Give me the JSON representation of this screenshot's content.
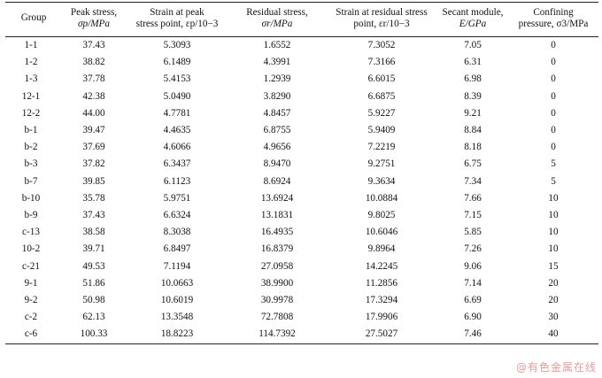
{
  "table": {
    "headers": [
      {
        "line1": "Group",
        "line2": ""
      },
      {
        "line1": "Peak stress,",
        "line2": "σp/MPa"
      },
      {
        "line1": "Strain at peak",
        "line2": "stress point, εp/10−3"
      },
      {
        "line1": "Residual stress,",
        "line2": "σr/MPa"
      },
      {
        "line1": "Strain at residual stress",
        "line2": "point, εr/10−3"
      },
      {
        "line1": "Secant module,",
        "line2": "E/GPa"
      },
      {
        "line1": "Confining",
        "line2": "pressure, σ3/MPa"
      }
    ],
    "rows": [
      [
        "1-1",
        "37.43",
        "5.3093",
        "1.6552",
        "7.3052",
        "7.05",
        "0"
      ],
      [
        "1-2",
        "38.82",
        "6.1489",
        "4.3991",
        "7.3166",
        "6.31",
        "0"
      ],
      [
        "1-3",
        "37.78",
        "5.4153",
        "1.2939",
        "6.6015",
        "6.98",
        "0"
      ],
      [
        "12-1",
        "42.38",
        "5.0490",
        "3.8290",
        "6.6875",
        "8.39",
        "0"
      ],
      [
        "12-2",
        "44.00",
        "4.7781",
        "4.8457",
        "5.9227",
        "9.21",
        "0"
      ],
      [
        "b-1",
        "39.47",
        "4.4635",
        "6.8755",
        "5.9409",
        "8.84",
        "0"
      ],
      [
        "b-2",
        "37.69",
        "4.6066",
        "4.9656",
        "7.2219",
        "8.18",
        "0"
      ],
      [
        "b-3",
        "37.82",
        "6.3437",
        "8.9470",
        "9.2751",
        "6.75",
        "5"
      ],
      [
        "b-7",
        "39.85",
        "6.1123",
        "8.6924",
        "9.3634",
        "7.34",
        "5"
      ],
      [
        "b-10",
        "35.78",
        "5.9751",
        "13.6924",
        "10.0884",
        "7.66",
        "10"
      ],
      [
        "b-9",
        "37.43",
        "6.6324",
        "13.1831",
        "9.8025",
        "7.15",
        "10"
      ],
      [
        "c-13",
        "38.58",
        "8.3038",
        "16.4935",
        "10.6046",
        "5.85",
        "10"
      ],
      [
        "10-2",
        "39.71",
        "6.8497",
        "16.8379",
        "9.8964",
        "7.26",
        "10"
      ],
      [
        "c-21",
        "49.53",
        "7.1194",
        "27.0958",
        "14.2245",
        "9.06",
        "15"
      ],
      [
        "9-1",
        "51.86",
        "10.0663",
        "38.9900",
        "11.2856",
        "7.14",
        "20"
      ],
      [
        "9-2",
        "50.98",
        "10.6019",
        "30.9978",
        "17.3294",
        "6.69",
        "20"
      ],
      [
        "c-2",
        "62.13",
        "13.3548",
        "72.7808",
        "17.9906",
        "6.90",
        "30"
      ],
      [
        "c-6",
        "100.33",
        "18.8223",
        "114.7392",
        "27.5027",
        "7.46",
        "40"
      ]
    ]
  },
  "watermark": {
    "text": "@有色金属在线"
  }
}
